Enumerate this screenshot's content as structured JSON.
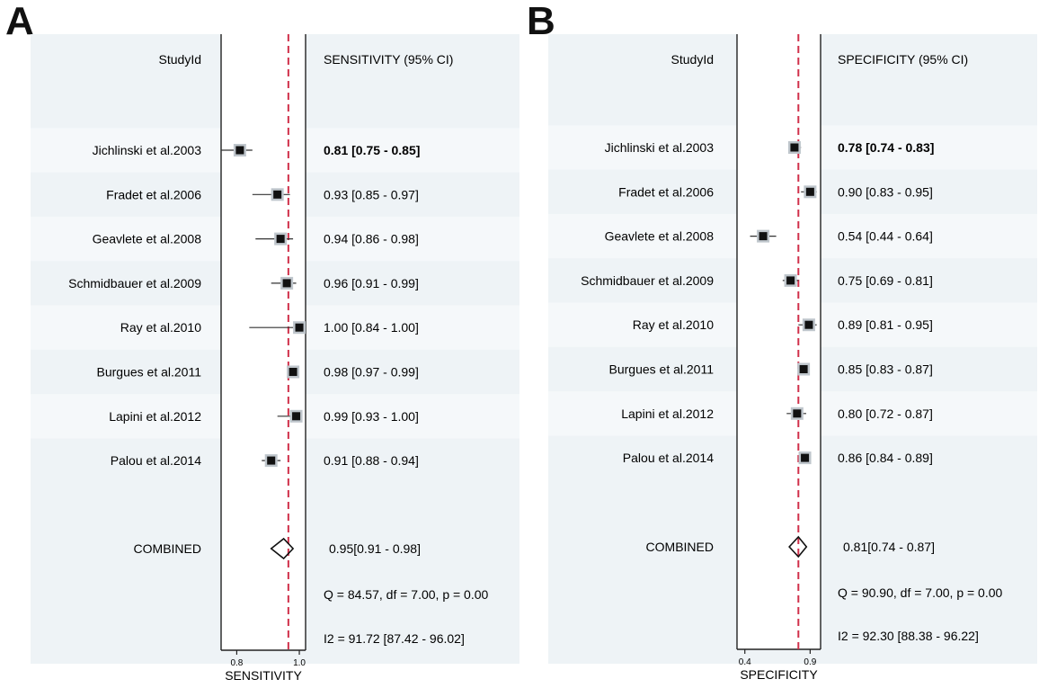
{
  "chart_data": [
    {
      "type": "forest",
      "panel": "A",
      "study_header": "StudyId",
      "metric_header": "SENSITIVITY (95% CI)",
      "xlabel": "SENSITIVITY",
      "xlim": [
        0.75,
        1.02
      ],
      "xticks": [
        0.8,
        1.0
      ],
      "xtick_labels": [
        "0.8",
        "1.0"
      ],
      "reference_line": 0.965,
      "studies": [
        {
          "label": "Jichlinski et al.2003",
          "estimate": 0.81,
          "lower": 0.75,
          "upper": 0.85,
          "text": "0.81 [0.75 - 0.85]",
          "bold": true
        },
        {
          "label": "Fradet et al.2006",
          "estimate": 0.93,
          "lower": 0.85,
          "upper": 0.97,
          "text": "0.93 [0.85 - 0.97]"
        },
        {
          "label": "Geavlete  et al.2008",
          "estimate": 0.94,
          "lower": 0.86,
          "upper": 0.98,
          "text": "0.94 [0.86 - 0.98]"
        },
        {
          "label": "Schmidbauer et al.2009",
          "estimate": 0.96,
          "lower": 0.91,
          "upper": 0.99,
          "text": "0.96 [0.91 - 0.99]"
        },
        {
          "label": "Ray et al.2010",
          "estimate": 1.0,
          "lower": 0.84,
          "upper": 1.0,
          "text": "1.00 [0.84 - 1.00]"
        },
        {
          "label": "Burgues et al.2011",
          "estimate": 0.98,
          "lower": 0.97,
          "upper": 0.99,
          "text": "0.98 [0.97 - 0.99]"
        },
        {
          "label": "Lapini et al.2012",
          "estimate": 0.99,
          "lower": 0.93,
          "upper": 1.0,
          "text": "0.99 [0.93 - 1.00]"
        },
        {
          "label": "Palou et al.2014",
          "estimate": 0.91,
          "lower": 0.88,
          "upper": 0.94,
          "text": "0.91 [0.88 - 0.94]"
        }
      ],
      "combined": {
        "label": "COMBINED",
        "estimate": 0.95,
        "lower": 0.91,
        "upper": 0.98,
        "text": "0.95[0.91 - 0.98]"
      },
      "q_text": "Q = 84.57, df = 7.00, p =  0.00",
      "i2_text": "I2 = 91.72 [87.42 - 96.02]"
    },
    {
      "type": "forest",
      "panel": "B",
      "study_header": "StudyId",
      "metric_header": "SPECIFICITY (95% CI)",
      "xlabel": "SPECIFICITY",
      "xlim": [
        0.34,
        0.98
      ],
      "xticks": [
        0.4,
        0.9
      ],
      "xtick_labels": [
        "0.4",
        "0.9"
      ],
      "reference_line": 0.81,
      "studies": [
        {
          "label": "Jichlinski et al.2003",
          "estimate": 0.78,
          "lower": 0.74,
          "upper": 0.83,
          "text": "0.78 [0.74 - 0.83]",
          "bold": true
        },
        {
          "label": "Fradet et al.2006",
          "estimate": 0.9,
          "lower": 0.83,
          "upper": 0.95,
          "text": "0.90 [0.83 - 0.95]"
        },
        {
          "label": "Geavlete  et al.2008",
          "estimate": 0.54,
          "lower": 0.44,
          "upper": 0.64,
          "text": "0.54 [0.44 - 0.64]"
        },
        {
          "label": "Schmidbauer et al.2009",
          "estimate": 0.75,
          "lower": 0.69,
          "upper": 0.81,
          "text": "0.75 [0.69 - 0.81]"
        },
        {
          "label": "Ray et al.2010",
          "estimate": 0.89,
          "lower": 0.81,
          "upper": 0.95,
          "text": "0.89 [0.81 - 0.95]"
        },
        {
          "label": "Burgues et al.2011",
          "estimate": 0.85,
          "lower": 0.83,
          "upper": 0.87,
          "text": "0.85 [0.83 - 0.87]"
        },
        {
          "label": "Lapini et al.2012",
          "estimate": 0.8,
          "lower": 0.72,
          "upper": 0.87,
          "text": "0.80 [0.72 - 0.87]"
        },
        {
          "label": "Palou et al.2014",
          "estimate": 0.86,
          "lower": 0.84,
          "upper": 0.89,
          "text": "0.86 [0.84 - 0.89]"
        }
      ],
      "combined": {
        "label": "COMBINED",
        "estimate": 0.81,
        "lower": 0.74,
        "upper": 0.87,
        "text": "0.81[0.74 - 0.87]"
      },
      "q_text": "Q = 90.90, df = 7.00, p =  0.00",
      "i2_text": "I2 = 92.30 [88.38 - 96.22]"
    }
  ],
  "panel_letters": [
    "A",
    "B"
  ],
  "colors": {
    "background": "#eef3f6",
    "band_light": "#f5f8fa",
    "reference_line": "#d0304a",
    "marker": "#111111",
    "marker_halo": "#bfc6cc",
    "text": "#111111"
  }
}
